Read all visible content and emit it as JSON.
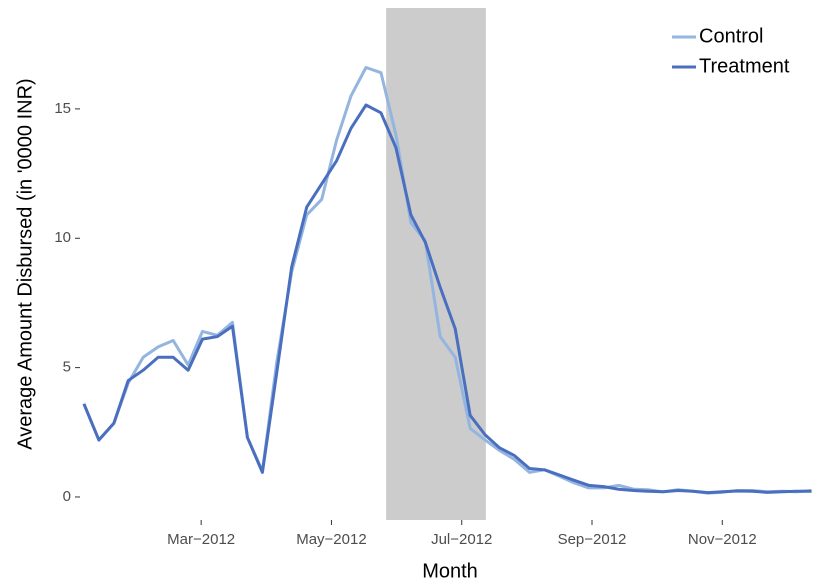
{
  "chart_data": {
    "type": "line",
    "x_label": "Month",
    "y_label": "Average Amount Disbursed (in '0000 INR)",
    "x": [
      1.2,
      1.43,
      1.66,
      1.88,
      2.11,
      2.34,
      2.57,
      2.8,
      3.02,
      3.25,
      3.48,
      3.71,
      3.94,
      4.16,
      4.39,
      4.62,
      4.85,
      5.08,
      5.3,
      5.53,
      5.76,
      5.99,
      6.22,
      6.44,
      6.67,
      6.9,
      7.13,
      7.36,
      7.58,
      7.81,
      8.04,
      8.27,
      8.5,
      8.72,
      8.95,
      9.18,
      9.41,
      9.64,
      9.86,
      10.09,
      10.32,
      10.55,
      10.78,
      11.0,
      11.23,
      11.46,
      11.69,
      11.92,
      12.14,
      12.37
    ],
    "series": [
      {
        "name": "Control",
        "color": "#93b5e0",
        "values": [
          3.6,
          2.2,
          2.85,
          4.4,
          5.4,
          5.8,
          6.05,
          5.1,
          6.4,
          6.25,
          6.75,
          2.3,
          1.0,
          5.2,
          8.7,
          10.9,
          11.5,
          13.8,
          15.5,
          16.6,
          16.4,
          14.0,
          10.6,
          9.9,
          6.2,
          5.4,
          2.65,
          2.2,
          1.8,
          1.45,
          0.95,
          1.05,
          0.8,
          0.55,
          0.35,
          0.35,
          0.45,
          0.3,
          0.28,
          0.2,
          0.28,
          0.22,
          0.15,
          0.18,
          0.25,
          0.25,
          0.2,
          0.22,
          0.2,
          0.25
        ]
      },
      {
        "name": "Treatment",
        "color": "#4a6fbf",
        "values": [
          3.6,
          2.2,
          2.85,
          4.5,
          4.9,
          5.4,
          5.4,
          4.9,
          6.1,
          6.2,
          6.6,
          2.3,
          0.95,
          4.8,
          8.9,
          11.2,
          12.1,
          13.0,
          14.25,
          15.15,
          14.85,
          13.5,
          10.9,
          9.85,
          8.1,
          6.5,
          3.15,
          2.4,
          1.9,
          1.6,
          1.1,
          1.05,
          0.85,
          0.65,
          0.45,
          0.4,
          0.3,
          0.25,
          0.22,
          0.2,
          0.25,
          0.22,
          0.17,
          0.2,
          0.23,
          0.22,
          0.18,
          0.2,
          0.22,
          0.22
        ]
      }
    ],
    "shaded_region": [
      5.84,
      7.37
    ],
    "shaded_color": "#cccccc",
    "xlim": [
      1.14,
      12.5
    ],
    "xticks": [
      {
        "value": 3,
        "label": "Mar−2012"
      },
      {
        "value": 5,
        "label": "May−2012"
      },
      {
        "value": 7,
        "label": "Jul−2012"
      },
      {
        "value": 9,
        "label": "Sep−2012"
      },
      {
        "value": 11,
        "label": "Nov−2012"
      }
    ],
    "ylim": [
      -0.89,
      18.9
    ],
    "yticks": [
      0,
      5,
      10,
      15
    ],
    "grid": false,
    "legend": "top-right"
  }
}
